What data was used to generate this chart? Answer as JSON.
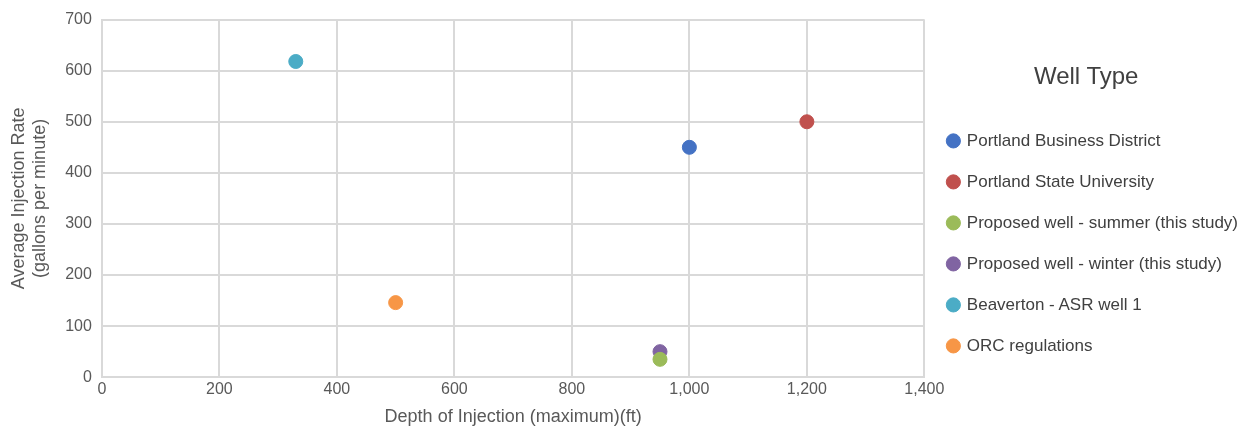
{
  "chart_data": {
    "type": "scatter",
    "xlabel": "Depth of Injection (maximum)(ft)",
    "ylabel": "Average Injection Rate (gallons per minute)",
    "legend_title": "Well Type",
    "xlim": [
      0,
      1400
    ],
    "xticks": [
      0,
      200,
      400,
      600,
      800,
      {
        "value": 1000,
        "label": "1,000"
      },
      {
        "value": 1200,
        "label": "1,200"
      },
      {
        "value": 1400,
        "label": "1,400"
      }
    ],
    "ylim": [
      0,
      700
    ],
    "yticks": [
      0,
      100,
      200,
      300,
      400,
      500,
      600,
      700
    ],
    "grid": true,
    "legend": "right",
    "marker": "circle",
    "series": [
      {
        "name": "Portland Business District",
        "color": "#4472c4",
        "x": [
          1000
        ],
        "values": [
          450
        ]
      },
      {
        "name": "Portland State University",
        "color": "#c0504d",
        "x": [
          1200
        ],
        "values": [
          500
        ]
      },
      {
        "name": "Proposed well - summer (this study)",
        "color": "#9bbb59",
        "x": [
          950
        ],
        "values": [
          35
        ]
      },
      {
        "name": "Proposed well - winter (this study)",
        "color": "#8064a2",
        "x": [
          950
        ],
        "values": [
          50
        ]
      },
      {
        "name": "Beaverton - ASR well 1",
        "color": "#4bacc6",
        "x": [
          330
        ],
        "values": [
          618
        ]
      },
      {
        "name": "ORC regulations",
        "color": "#f79646",
        "x": [
          500
        ],
        "values": [
          146
        ]
      }
    ]
  }
}
